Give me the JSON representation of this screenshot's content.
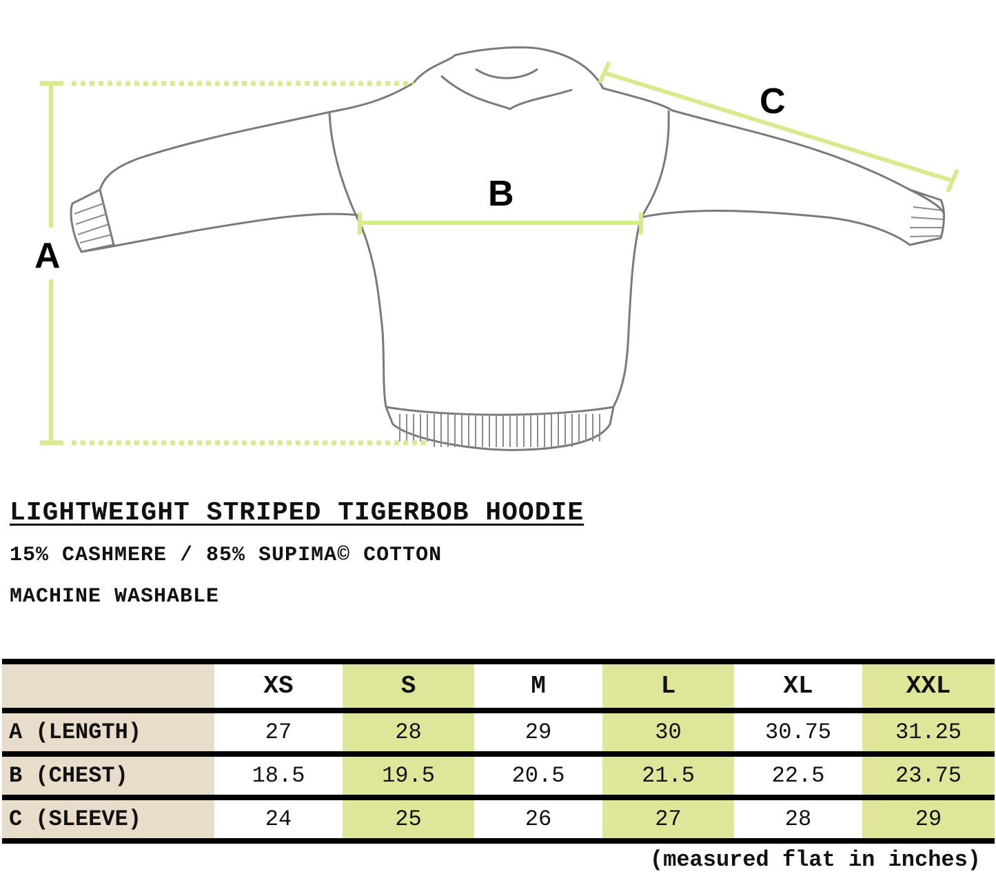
{
  "diagram": {
    "labels": {
      "a": "A",
      "b": "B",
      "c": "C"
    },
    "measure_color": "#d7ea8c",
    "outline_color": "#7a7a7a"
  },
  "product": {
    "title": "LIGHTWEIGHT STRIPED TIGERBOB HOODIE",
    "material": "15% CASHMERE / 85% SUPIMA© COTTON",
    "care": "MACHINE WASHABLE"
  },
  "size_table": {
    "sizes": [
      "XS",
      "S",
      "M",
      "L",
      "XL",
      "XXL"
    ],
    "rows": [
      {
        "label": "A (LENGTH)",
        "values": [
          "27",
          "28",
          "29",
          "30",
          "30.75",
          "31.25"
        ]
      },
      {
        "label": "B (CHEST)",
        "values": [
          "18.5",
          "19.5",
          "20.5",
          "21.5",
          "22.5",
          "23.75"
        ]
      },
      {
        "label": "C (SLEEVE)",
        "values": [
          "24",
          "25",
          "26",
          "27",
          "28",
          "29"
        ]
      }
    ],
    "colors": {
      "label_bg": "#e8dccb",
      "highlight_bg": "#dfe69a"
    },
    "note": "(measured flat in inches)"
  }
}
